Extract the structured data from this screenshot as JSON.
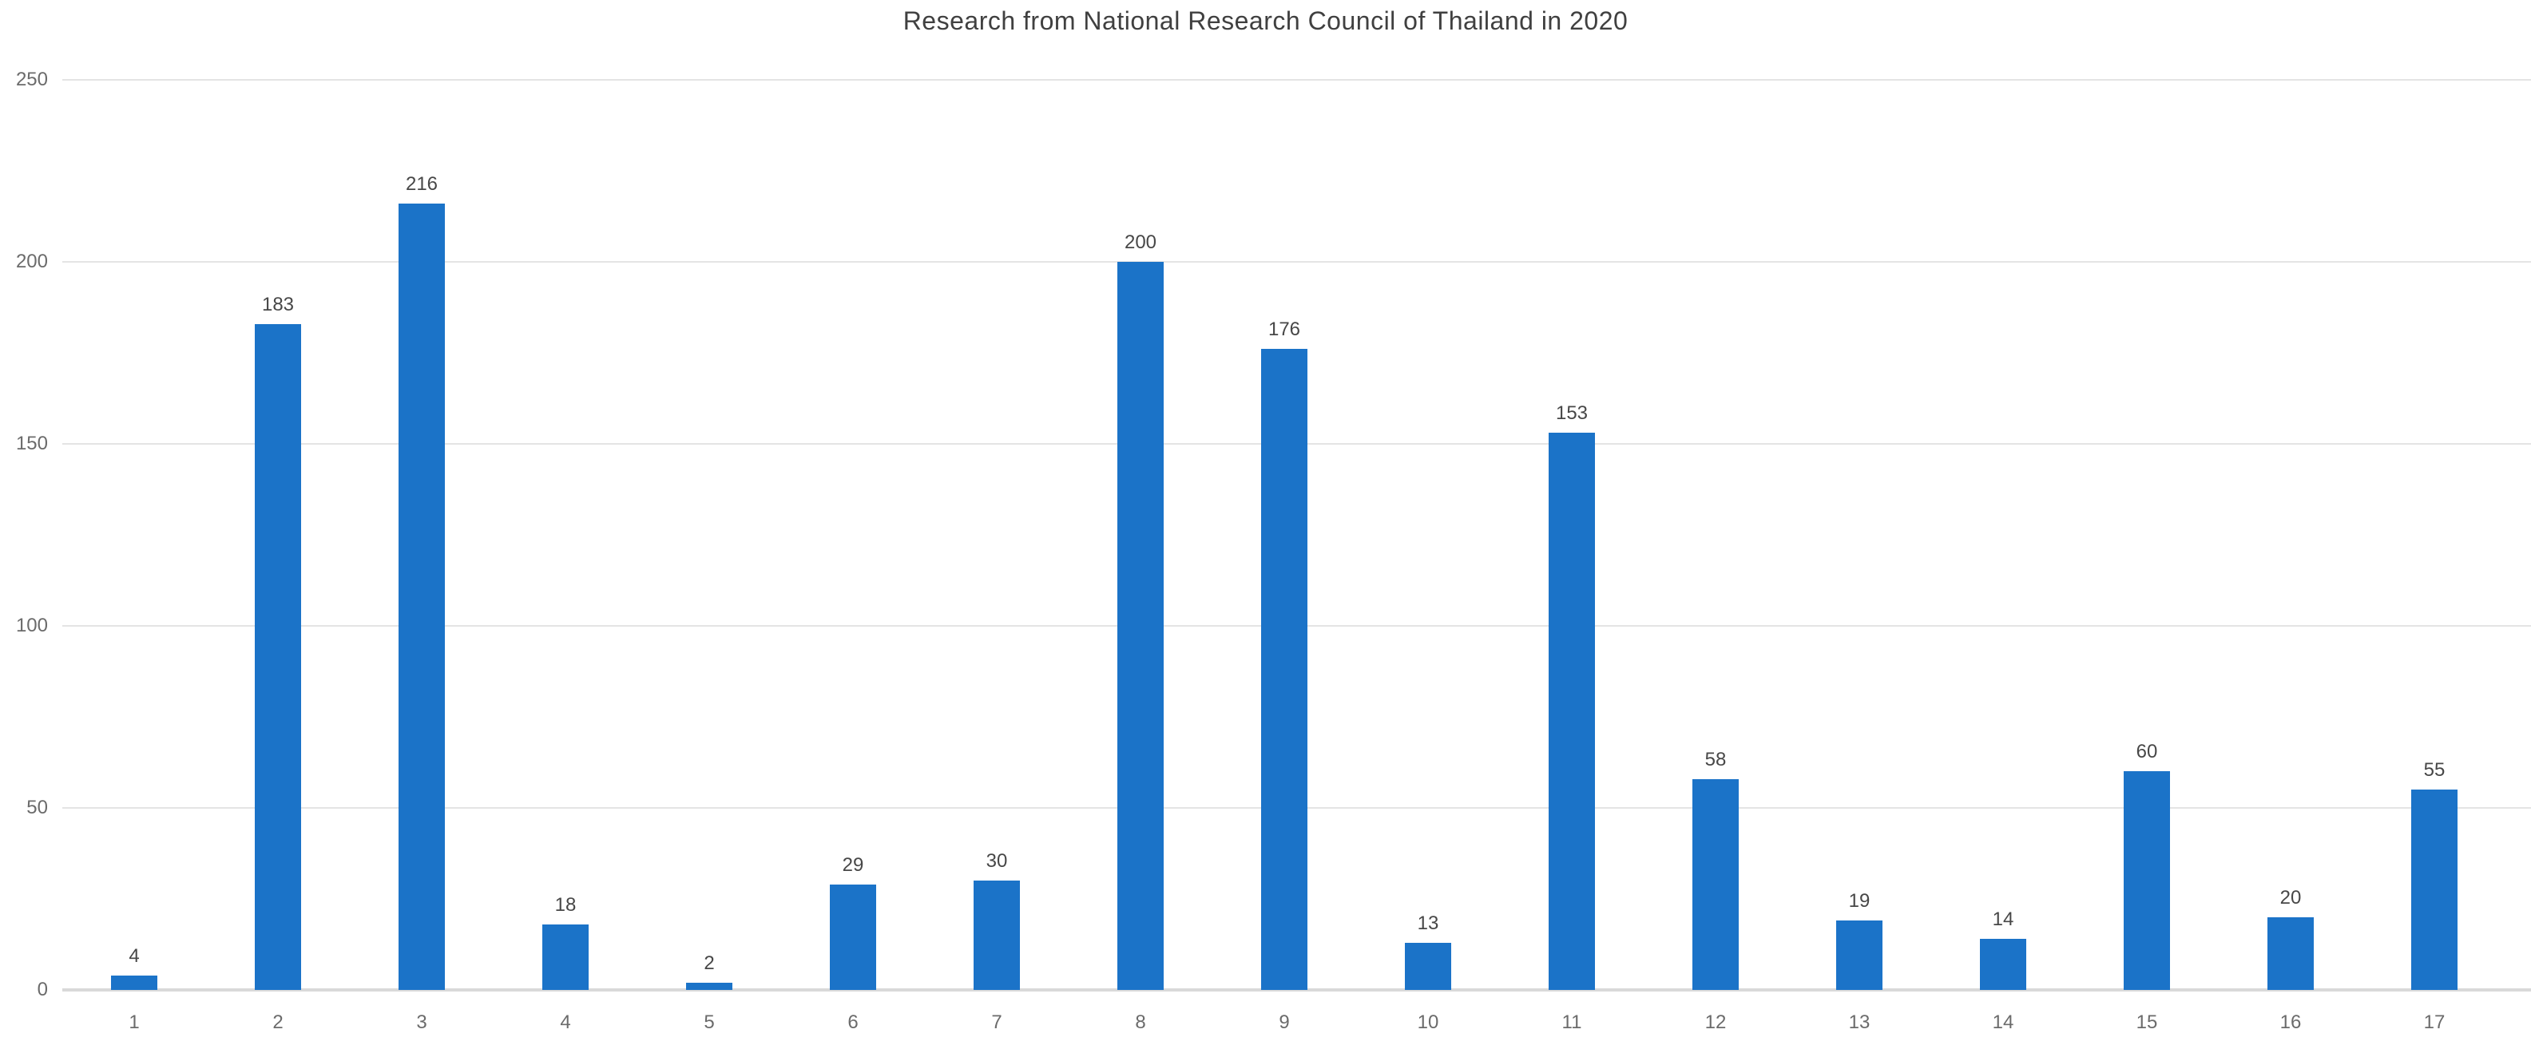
{
  "chart_data": {
    "type": "bar",
    "title": "Research from National Research Council of Thailand in 2020",
    "categories": [
      "1",
      "2",
      "3",
      "4",
      "5",
      "6",
      "7",
      "8",
      "9",
      "10",
      "11",
      "12",
      "13",
      "14",
      "15",
      "16",
      "17"
    ],
    "values": [
      4,
      183,
      216,
      18,
      2,
      29,
      30,
      200,
      176,
      13,
      153,
      58,
      19,
      14,
      60,
      20,
      55
    ],
    "xlabel": "",
    "ylabel": "",
    "ylim": [
      0,
      250
    ],
    "yticks": [
      0,
      50,
      100,
      150,
      200,
      250
    ],
    "grid": true,
    "legend": false,
    "data_labels": true
  },
  "style": {
    "bar_color": "#1B73C8",
    "title_color": "#404040",
    "data_label_color": "#474747",
    "axis_text_color": "#6B6B6B",
    "gridline_color": "#E4E4E4",
    "baseline_color": "#D9D9D9",
    "background": "#FFFFFF"
  }
}
